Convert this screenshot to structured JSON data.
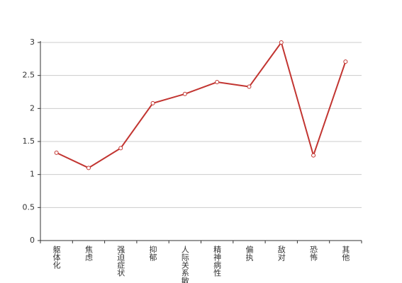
{
  "chart_data": {
    "type": "line",
    "categories": [
      "躯体化",
      "焦虑",
      "强迫症状",
      "抑郁",
      "人际关系敏感",
      "精神病性",
      "偏执",
      "敌对",
      "恐怖",
      "其他"
    ],
    "values": [
      1.33,
      1.1,
      1.4,
      2.08,
      2.22,
      2.4,
      2.33,
      3.0,
      1.29,
      2.71
    ],
    "color": "#c23531",
    "ylim": [
      0,
      3
    ],
    "yticks": [
      0,
      0.5,
      1,
      1.5,
      2,
      2.5,
      3
    ],
    "grid": true
  }
}
